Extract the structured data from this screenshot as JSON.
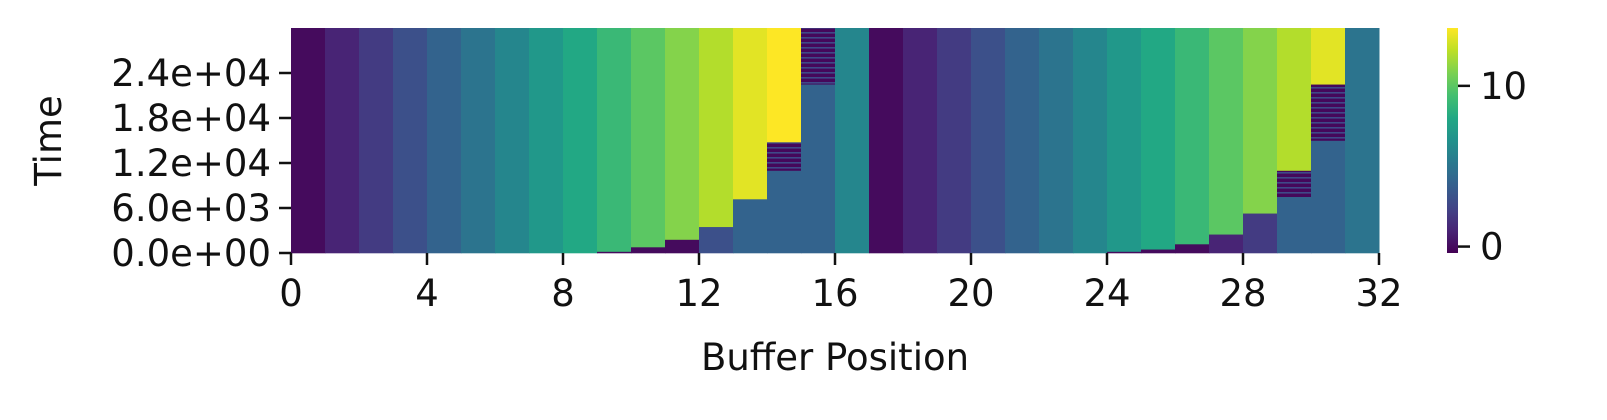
{
  "chart_data": {
    "type": "heatmap",
    "xlabel": "Buffer Position",
    "ylabel": "Time",
    "xlim": [
      0,
      32
    ],
    "ylim": [
      0,
      30000
    ],
    "x_ticks": [
      0,
      4,
      8,
      12,
      16,
      20,
      24,
      28,
      32
    ],
    "x_tick_labels": [
      "0",
      "4",
      "8",
      "12",
      "16",
      "20",
      "24",
      "28",
      "32"
    ],
    "y_ticks": [
      0,
      6000,
      12000,
      18000,
      24000
    ],
    "y_tick_labels": [
      "0.0e+00",
      "6.0e+03",
      "1.2e+04",
      "1.8e+04",
      "2.4e+04"
    ],
    "colormap": "viridis",
    "color_range": [
      -0.4,
      13.6
    ],
    "colorbar_ticks": [
      0,
      10
    ],
    "colorbar_tick_labels": [
      "0",
      "10"
    ],
    "grid": false,
    "columns": [
      {
        "position": 0,
        "segments": [
          {
            "from": 0,
            "to": 30000,
            "value": 0
          }
        ]
      },
      {
        "position": 1,
        "segments": [
          {
            "from": 0,
            "to": 30000,
            "value": 1
          }
        ]
      },
      {
        "position": 2,
        "segments": [
          {
            "from": 0,
            "to": 30000,
            "value": 2
          }
        ]
      },
      {
        "position": 3,
        "segments": [
          {
            "from": 0,
            "to": 30000,
            "value": 3
          }
        ]
      },
      {
        "position": 4,
        "segments": [
          {
            "from": 0,
            "to": 30000,
            "value": 4
          }
        ]
      },
      {
        "position": 5,
        "segments": [
          {
            "from": 0,
            "to": 30000,
            "value": 5
          }
        ]
      },
      {
        "position": 6,
        "segments": [
          {
            "from": 0,
            "to": 30000,
            "value": 6
          }
        ]
      },
      {
        "position": 7,
        "segments": [
          {
            "from": 0,
            "to": 30000,
            "value": 7
          }
        ]
      },
      {
        "position": 8,
        "segments": [
          {
            "from": 0,
            "to": 30000,
            "value": 8
          }
        ]
      },
      {
        "position": 9,
        "segments": [
          {
            "from": 0,
            "to": 200,
            "value": 0
          },
          {
            "from": 200,
            "to": 30000,
            "value": 9
          }
        ]
      },
      {
        "position": 10,
        "segments": [
          {
            "from": 0,
            "to": 800,
            "value": 0
          },
          {
            "from": 800,
            "to": 30000,
            "value": 10
          }
        ]
      },
      {
        "position": 11,
        "segments": [
          {
            "from": 0,
            "to": 1800,
            "value": 0
          },
          {
            "from": 1800,
            "to": 30000,
            "value": 11
          }
        ]
      },
      {
        "position": 12,
        "segments": [
          {
            "from": 0,
            "to": 3500,
            "value": 3
          },
          {
            "from": 3500,
            "to": 30000,
            "value": 12
          }
        ]
      },
      {
        "position": 13,
        "segments": [
          {
            "from": 0,
            "to": 7200,
            "value": 4
          },
          {
            "from": 7200,
            "to": 30000,
            "value": 13
          }
        ]
      },
      {
        "position": 14,
        "segments": [
          {
            "from": 0,
            "to": 11000,
            "value": 4
          },
          {
            "from": 11000,
            "to": 14800,
            "value": 0,
            "striped": true
          },
          {
            "from": 14800,
            "to": 30000,
            "value": 14
          }
        ]
      },
      {
        "position": 15,
        "segments": [
          {
            "from": 0,
            "to": 22500,
            "value": 4
          },
          {
            "from": 22500,
            "to": 30000,
            "value": 0,
            "striped": true
          }
        ]
      },
      {
        "position": 16,
        "segments": [
          {
            "from": 0,
            "to": 30000,
            "value": 6
          }
        ]
      },
      {
        "position": 17,
        "segments": [
          {
            "from": 0,
            "to": 30000,
            "value": 0
          }
        ]
      },
      {
        "position": 18,
        "segments": [
          {
            "from": 0,
            "to": 30000,
            "value": 1
          }
        ]
      },
      {
        "position": 19,
        "segments": [
          {
            "from": 0,
            "to": 30000,
            "value": 2
          }
        ]
      },
      {
        "position": 20,
        "segments": [
          {
            "from": 0,
            "to": 30000,
            "value": 3
          }
        ]
      },
      {
        "position": 21,
        "segments": [
          {
            "from": 0,
            "to": 30000,
            "value": 4
          }
        ]
      },
      {
        "position": 22,
        "segments": [
          {
            "from": 0,
            "to": 30000,
            "value": 5
          }
        ]
      },
      {
        "position": 23,
        "segments": [
          {
            "from": 0,
            "to": 30000,
            "value": 6
          }
        ]
      },
      {
        "position": 24,
        "segments": [
          {
            "from": 0,
            "to": 200,
            "value": 0
          },
          {
            "from": 200,
            "to": 30000,
            "value": 7
          }
        ]
      },
      {
        "position": 25,
        "segments": [
          {
            "from": 0,
            "to": 500,
            "value": 0
          },
          {
            "from": 500,
            "to": 30000,
            "value": 8
          }
        ]
      },
      {
        "position": 26,
        "segments": [
          {
            "from": 0,
            "to": 1200,
            "value": 0
          },
          {
            "from": 1200,
            "to": 30000,
            "value": 9
          }
        ]
      },
      {
        "position": 27,
        "segments": [
          {
            "from": 0,
            "to": 2500,
            "value": 1
          },
          {
            "from": 2500,
            "to": 30000,
            "value": 10
          }
        ]
      },
      {
        "position": 28,
        "segments": [
          {
            "from": 0,
            "to": 5300,
            "value": 2
          },
          {
            "from": 5300,
            "to": 30000,
            "value": 11
          }
        ]
      },
      {
        "position": 29,
        "segments": [
          {
            "from": 0,
            "to": 7500,
            "value": 4
          },
          {
            "from": 7500,
            "to": 11000,
            "value": 0,
            "striped": true
          },
          {
            "from": 11000,
            "to": 30000,
            "value": 12
          }
        ]
      },
      {
        "position": 30,
        "segments": [
          {
            "from": 0,
            "to": 15000,
            "value": 4
          },
          {
            "from": 15000,
            "to": 22500,
            "value": 0,
            "striped": true
          },
          {
            "from": 22500,
            "to": 30000,
            "value": 13
          }
        ]
      },
      {
        "position": 31,
        "segments": [
          {
            "from": 0,
            "to": 30000,
            "value": 5
          }
        ]
      }
    ]
  }
}
